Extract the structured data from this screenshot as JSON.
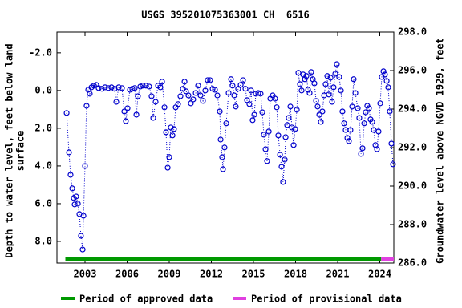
{
  "chart_data": {
    "type": "scatter",
    "title": "USGS 395201075363001 CH  6516",
    "ylabel": [
      "Depth to water level, feet below land",
      "surface"
    ],
    "y2label": "Groundwater level above NGVD 1929, feet",
    "xlim": [
      2001,
      2025
    ],
    "xticks": [
      2003,
      2006,
      2009,
      2012,
      2015,
      2018,
      2021,
      2024
    ],
    "ylim": [
      -3.1,
      9.15
    ],
    "y_inverted": true,
    "yticks": [
      {
        "value": -2,
        "label": "-2.0"
      },
      {
        "value": 0,
        "label": "0.0"
      },
      {
        "value": 2,
        "label": "2.0"
      },
      {
        "value": 4,
        "label": "4.0"
      },
      {
        "value": 6,
        "label": "6.0"
      },
      {
        "value": 8,
        "label": "8.0"
      }
    ],
    "y2lim": [
      286,
      298
    ],
    "y2ticks": [
      {
        "value": 286,
        "label": "286.0"
      },
      {
        "value": 288,
        "label": "288.0"
      },
      {
        "value": 290,
        "label": "290.0"
      },
      {
        "value": 292,
        "label": "292.0"
      },
      {
        "value": 294,
        "label": "294.0"
      },
      {
        "value": 296,
        "label": "296.0"
      },
      {
        "value": 298,
        "label": "298.0"
      }
    ],
    "series": [
      {
        "color": "#0000cc",
        "x": [
          2001.69,
          2001.86,
          2001.97,
          2002.09,
          2002.2,
          2002.26,
          2002.37,
          2002.49,
          2002.6,
          2002.71,
          2002.83,
          2002.89,
          2003.0,
          2003.11,
          2003.23,
          2003.34,
          2003.46,
          2003.63,
          2003.8,
          2003.97,
          2004.2,
          2004.43,
          2004.66,
          2004.89,
          2005.11,
          2005.23,
          2005.4,
          2005.63,
          2005.8,
          2005.91,
          2006.03,
          2006.2,
          2006.37,
          2006.54,
          2006.66,
          2006.77,
          2006.94,
          2007.11,
          2007.34,
          2007.57,
          2007.74,
          2007.86,
          2008.03,
          2008.2,
          2008.37,
          2008.49,
          2008.66,
          2008.77,
          2008.89,
          2009.0,
          2009.11,
          2009.23,
          2009.34,
          2009.46,
          2009.63,
          2009.8,
          2009.97,
          2010.09,
          2010.2,
          2010.37,
          2010.54,
          2010.71,
          2010.89,
          2011.06,
          2011.23,
          2011.4,
          2011.57,
          2011.74,
          2011.91,
          2012.09,
          2012.26,
          2012.43,
          2012.6,
          2012.66,
          2012.77,
          2012.83,
          2012.94,
          2013.06,
          2013.23,
          2013.4,
          2013.51,
          2013.63,
          2013.74,
          2013.91,
          2014.09,
          2014.26,
          2014.43,
          2014.54,
          2014.71,
          2014.83,
          2014.94,
          2015.06,
          2015.17,
          2015.34,
          2015.51,
          2015.63,
          2015.74,
          2015.86,
          2015.97,
          2016.09,
          2016.2,
          2016.37,
          2016.54,
          2016.66,
          2016.77,
          2016.89,
          2017.0,
          2017.11,
          2017.23,
          2017.29,
          2017.4,
          2017.51,
          2017.63,
          2017.74,
          2017.86,
          2017.97,
          2018.09,
          2018.2,
          2018.31,
          2018.43,
          2018.54,
          2018.66,
          2018.77,
          2018.89,
          2019.0,
          2019.11,
          2019.23,
          2019.34,
          2019.46,
          2019.57,
          2019.69,
          2019.8,
          2019.91,
          2020.03,
          2020.14,
          2020.26,
          2020.37,
          2020.49,
          2020.6,
          2020.71,
          2020.83,
          2020.94,
          2021.11,
          2021.23,
          2021.34,
          2021.46,
          2021.57,
          2021.69,
          2021.8,
          2021.91,
          2022.03,
          2022.14,
          2022.26,
          2022.43,
          2022.54,
          2022.66,
          2022.77,
          2022.89,
          2023.0,
          2023.11,
          2023.23,
          2023.34,
          2023.46,
          2023.57,
          2023.69,
          2023.8,
          2023.91,
          2024.03,
          2024.14,
          2024.26,
          2024.37,
          2024.49,
          2024.6,
          2024.71,
          2024.83,
          2024.94
        ],
        "values": [
          1.19,
          3.28,
          4.47,
          5.19,
          5.7,
          6.04,
          5.62,
          6.0,
          6.55,
          7.7,
          8.43,
          6.64,
          4.0,
          0.81,
          -0.04,
          0.17,
          -0.17,
          -0.26,
          -0.3,
          -0.13,
          -0.09,
          -0.17,
          -0.13,
          -0.17,
          -0.09,
          0.6,
          -0.17,
          -0.13,
          1.11,
          1.62,
          0.94,
          -0.04,
          -0.09,
          -0.13,
          1.28,
          0.3,
          -0.21,
          -0.26,
          -0.26,
          -0.21,
          0.3,
          1.45,
          0.6,
          -0.26,
          -0.17,
          -0.47,
          0.89,
          2.21,
          4.09,
          3.53,
          1.96,
          2.38,
          2.04,
          0.89,
          0.72,
          0.3,
          -0.09,
          -0.47,
          0.04,
          0.26,
          0.68,
          0.47,
          0.13,
          -0.26,
          0.26,
          0.55,
          0.0,
          -0.55,
          -0.55,
          -0.09,
          -0.04,
          0.26,
          1.11,
          2.6,
          3.53,
          4.17,
          3.02,
          1.74,
          0.13,
          -0.6,
          -0.26,
          0.26,
          0.85,
          -0.09,
          -0.3,
          -0.55,
          -0.09,
          0.51,
          0.72,
          0.0,
          1.57,
          1.28,
          0.17,
          0.13,
          0.17,
          1.15,
          2.34,
          3.11,
          3.74,
          2.17,
          0.43,
          0.26,
          0.43,
          0.89,
          2.38,
          3.4,
          4.04,
          4.85,
          3.66,
          2.47,
          1.83,
          1.45,
          0.85,
          1.96,
          2.89,
          2.04,
          1.02,
          -0.94,
          -0.34,
          0.0,
          -0.85,
          -0.6,
          -0.77,
          -0.04,
          0.13,
          -0.98,
          -0.6,
          -0.38,
          0.55,
          0.85,
          1.28,
          1.66,
          1.11,
          0.26,
          -0.34,
          -0.77,
          0.21,
          -0.68,
          0.6,
          -0.17,
          -0.89,
          -1.4,
          -0.72,
          0.0,
          1.11,
          1.74,
          2.09,
          2.51,
          2.68,
          2.09,
          0.85,
          -0.6,
          0.13,
          0.94,
          1.45,
          3.36,
          3.06,
          1.74,
          1.15,
          0.81,
          0.94,
          1.53,
          1.66,
          2.09,
          2.89,
          3.11,
          2.17,
          0.68,
          -0.72,
          -1.02,
          -0.85,
          -0.51,
          -0.17,
          1.11,
          2.81,
          3.91
        ]
      }
    ],
    "periods": [
      {
        "name": "Period of approved data",
        "color": "#009900",
        "range": [
          2001.6,
          2024.1
        ]
      },
      {
        "name": "Period of provisional data",
        "color": "#e040e0",
        "range": [
          2024.1,
          2025
        ]
      }
    ]
  }
}
